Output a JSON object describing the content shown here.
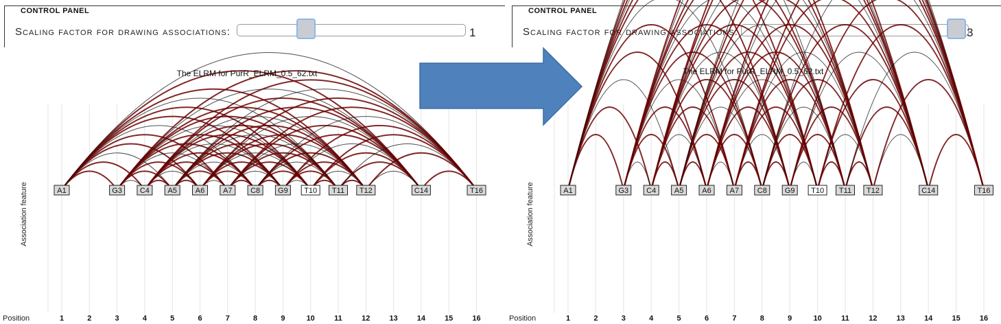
{
  "left": {
    "control_panel": {
      "legend": "CONTROL PANEL",
      "label": "Scaling factor for drawing associations:",
      "value": "1",
      "fraction": 0.31
    },
    "chart_data": {
      "type": "arc",
      "title": "The ELRM for PurR_ELRM_0.5_62.txt",
      "ylabel": "Association feature",
      "xlabel": "Position",
      "positions": [
        1,
        2,
        3,
        4,
        5,
        6,
        7,
        8,
        9,
        10,
        11,
        12,
        13,
        14,
        15,
        16
      ],
      "features": [
        {
          "label": "A1",
          "pos": 1,
          "style": "gray"
        },
        {
          "label": "G3",
          "pos": 3,
          "style": "gray"
        },
        {
          "label": "C4",
          "pos": 4,
          "style": "gray"
        },
        {
          "label": "A5",
          "pos": 5,
          "style": "gray"
        },
        {
          "label": "A6",
          "pos": 6,
          "style": "gray"
        },
        {
          "label": "A7",
          "pos": 7,
          "style": "gray"
        },
        {
          "label": "C8",
          "pos": 8,
          "style": "gray"
        },
        {
          "label": "G9",
          "pos": 9,
          "style": "gray"
        },
        {
          "label": "T10",
          "pos": 10,
          "style": "white"
        },
        {
          "label": "T11",
          "pos": 11,
          "style": "gray"
        },
        {
          "label": "T12",
          "pos": 12,
          "style": "gray"
        },
        {
          "label": "C14",
          "pos": 14,
          "style": "gray"
        },
        {
          "label": "T16",
          "pos": 16,
          "style": "gray"
        }
      ],
      "scaling_factor": 1
    }
  },
  "right": {
    "control_panel": {
      "legend": "CONTROL PANEL",
      "label": "Scaling factor for drawing associations:",
      "value": "3",
      "fraction": 1.0
    },
    "chart_data": {
      "type": "arc",
      "title": "The ELRM for PurR_ELRM_0.5_62.txt",
      "ylabel": "Association feature",
      "xlabel": "Position",
      "positions": [
        1,
        2,
        3,
        4,
        5,
        6,
        7,
        8,
        9,
        10,
        11,
        12,
        13,
        14,
        15,
        16
      ],
      "features": [
        {
          "label": "A1",
          "pos": 1,
          "style": "gray"
        },
        {
          "label": "G3",
          "pos": 3,
          "style": "gray"
        },
        {
          "label": "C4",
          "pos": 4,
          "style": "gray"
        },
        {
          "label": "A5",
          "pos": 5,
          "style": "gray"
        },
        {
          "label": "A6",
          "pos": 6,
          "style": "gray"
        },
        {
          "label": "A7",
          "pos": 7,
          "style": "gray"
        },
        {
          "label": "C8",
          "pos": 8,
          "style": "gray"
        },
        {
          "label": "G9",
          "pos": 9,
          "style": "gray"
        },
        {
          "label": "T10",
          "pos": 10,
          "style": "white"
        },
        {
          "label": "T11",
          "pos": 11,
          "style": "gray"
        },
        {
          "label": "T12",
          "pos": 12,
          "style": "gray"
        },
        {
          "label": "C14",
          "pos": 14,
          "style": "gray"
        },
        {
          "label": "T16",
          "pos": 16,
          "style": "gray"
        }
      ],
      "scaling_factor": 3
    }
  },
  "arrow": {
    "color": "#4f81bd",
    "direction": "right"
  },
  "colors": {
    "arc_dark_red": "#6b0000",
    "arc_black": "#111111",
    "grid": "#e3e3e3",
    "box_fill": "#d9d9d9"
  }
}
